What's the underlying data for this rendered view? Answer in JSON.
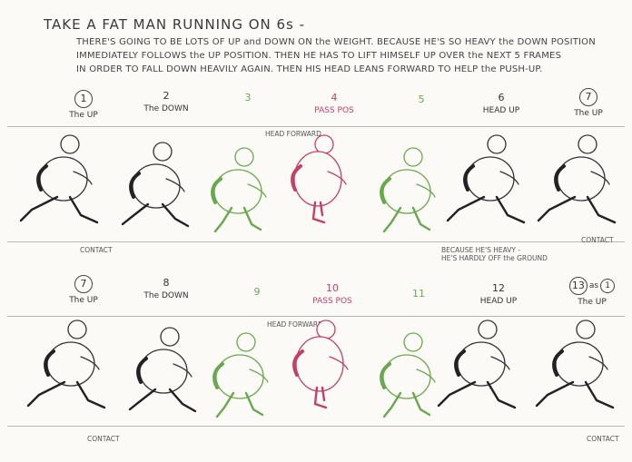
{
  "title": "TAKE A FAT MAN RUNNING ON 6s -",
  "notes": [
    "THERE'S GOING TO BE LOTS OF UP and DOWN ON the WEIGHT. BECAUSE HE'S SO HEAVY the DOWN POSITION",
    "IMMEDIATELY FOLLOWS the UP POSITION. THEN HE HAS TO LIFT HIMSELF UP OVER the NEXT 5 FRAMES",
    "IN ORDER TO FALL DOWN HEAVILY AGAIN. THEN HIS HEAD LEANS FORWARD TO HELP the PUSH-UP."
  ],
  "colors": {
    "ink": "#333333",
    "green": "#6aa84f",
    "pink": "#c2406b",
    "paper": "#fbfaf6"
  },
  "row1": {
    "frames": [
      {
        "num": "1",
        "label": "The UP",
        "color": "ink",
        "circled": true
      },
      {
        "num": "2",
        "label": "The DOWN",
        "color": "ink",
        "circled": false
      },
      {
        "num": "3",
        "label": "",
        "color": "green",
        "circled": false
      },
      {
        "num": "4",
        "label": "PASS POS",
        "color": "pink",
        "circled": false
      },
      {
        "num": "5",
        "label": "",
        "color": "green",
        "circled": false
      },
      {
        "num": "6",
        "label": "HEAD UP",
        "color": "ink",
        "circled": false
      },
      {
        "num": "7",
        "label": "The UP",
        "color": "ink",
        "circled": true
      }
    ],
    "head_note": "HEAD FORWARD",
    "contact_left": "CONTACT",
    "contact_right": "CONTACT",
    "heavy_note": [
      "BECAUSE HE'S HEAVY -",
      "HE'S HARDLY OFF the GROUND"
    ]
  },
  "row2": {
    "frames": [
      {
        "num": "7",
        "label": "The UP",
        "color": "ink",
        "circled": true
      },
      {
        "num": "8",
        "label": "The DOWN",
        "color": "ink",
        "circled": false
      },
      {
        "num": "9",
        "label": "",
        "color": "green",
        "circled": false
      },
      {
        "num": "10",
        "label": "PASS POS",
        "color": "pink",
        "circled": false
      },
      {
        "num": "11",
        "label": "",
        "color": "green",
        "circled": false
      },
      {
        "num": "12",
        "label": "HEAD UP",
        "color": "ink",
        "circled": false
      },
      {
        "num": "13",
        "label": "The UP",
        "color": "ink",
        "circled": true
      }
    ],
    "frame13_extra": "as",
    "frame13_ref": "1",
    "head_note": "HEAD FORWARD",
    "contact_left": "CONTACT",
    "contact_right": "CONTACT"
  }
}
